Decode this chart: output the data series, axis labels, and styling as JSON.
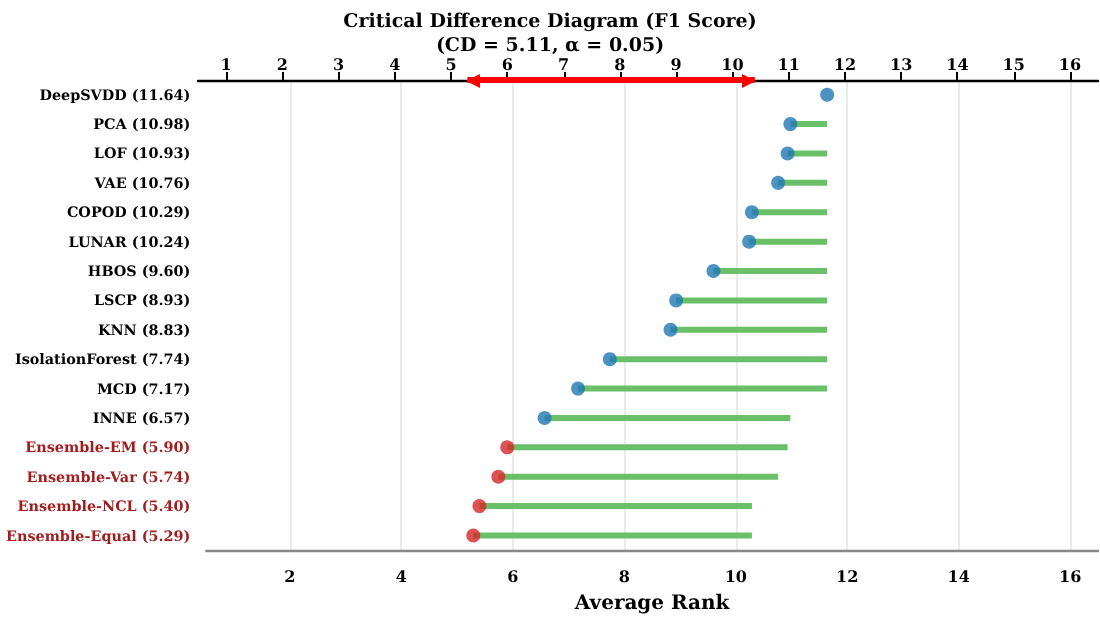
{
  "chart_data": [
    {
      "type": "scatter",
      "xlabel": "Average Rank",
      "orientation": "horizontal",
      "marker": "circle",
      "grid": "x",
      "categories": [
        "DeepSVDD (11.64)",
        "PCA (10.98)",
        "LOF (10.93)",
        "VAE (10.76)",
        "COPOD (10.29)",
        "LUNAR (10.24)",
        "HBOS (9.60)",
        "LSCP (8.93)",
        "KNN (8.83)",
        "IsolationForest (7.74)",
        "MCD (7.17)",
        "INNE (6.57)",
        "Ensemble-EM (5.90)",
        "Ensemble-Var (5.74)",
        "Ensemble-NCL (5.40)",
        "Ensemble-Equal (5.29)"
      ],
      "xlim": [
        0.5,
        16.5
      ],
      "xticks": [
        2,
        4,
        6,
        8,
        10,
        12,
        14,
        16
      ],
      "series": [
        {
          "type": "bar",
          "color": "#6abf69",
          "base": [
            null,
            10.98,
            10.93,
            10.76,
            10.29,
            10.24,
            9.6,
            8.93,
            8.83,
            7.74,
            7.17,
            6.57,
            5.9,
            5.74,
            5.4,
            5.29
          ],
          "values": [
            null,
            0.66,
            0.71,
            0.88,
            1.35,
            1.4,
            2.04,
            2.71,
            2.81,
            3.9,
            4.47,
            4.41,
            5.03,
            5.02,
            4.89,
            5.0
          ]
        },
        {
          "color": "#1f77b4",
          "colors": [
            "#1f77b4",
            "#1f77b4",
            "#1f77b4",
            "#1f77b4",
            "#1f77b4",
            "#1f77b4",
            "#1f77b4",
            "#1f77b4",
            "#1f77b4",
            "#1f77b4",
            "#1f77b4",
            "#1f77b4",
            "#d62728",
            "#d62728",
            "#d62728",
            "#d62728"
          ],
          "values": [
            11.64,
            10.98,
            10.93,
            10.76,
            10.29,
            10.24,
            9.6,
            8.93,
            8.83,
            7.74,
            7.17,
            6.57,
            5.9,
            5.74,
            5.4,
            5.29
          ]
        }
      ]
    },
    {
      "type": "bar",
      "title": "Critical Difference Diagram (F1 Score)",
      "subtitle": "(CD = 5.11, α = 0.05)",
      "orientation": "horizontal",
      "tick_labels": "x",
      "xlim": [
        0.5,
        16.5
      ],
      "xticks": [
        1,
        2,
        3,
        4,
        5,
        6,
        7,
        8,
        9,
        10,
        11,
        12,
        13,
        14,
        15,
        16
      ],
      "categories": [
        null
      ],
      "series": [
        {
          "color": "#ff0000",
          "base": [
            5.29
          ],
          "values": [
            5.11
          ]
        }
      ]
    }
  ]
}
